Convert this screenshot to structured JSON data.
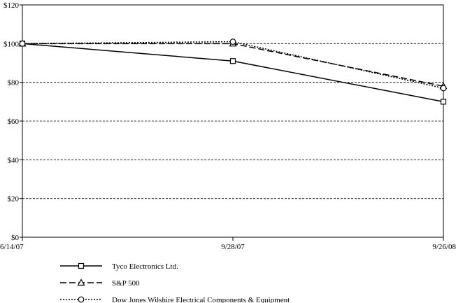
{
  "chart_data": {
    "type": "line",
    "title": "",
    "xlabel": "",
    "ylabel": "",
    "categories": [
      "6/14/07",
      "9/28/07",
      "9/26/08"
    ],
    "y_ticks": [
      "$0",
      "$20",
      "$40",
      "$60",
      "$80",
      "$100",
      "$120"
    ],
    "y_tick_values": [
      0,
      20,
      40,
      60,
      80,
      100,
      120
    ],
    "ylim": [
      0,
      120
    ],
    "grid": "horizontal dashed",
    "legend_position": "bottom-left",
    "series": [
      {
        "name": "Tyco Electronics Ltd.",
        "values": [
          100,
          91,
          70
        ],
        "marker": "square",
        "dash": "solid"
      },
      {
        "name": "S&P 500",
        "values": [
          100,
          100,
          78
        ],
        "marker": "triangle",
        "dash": "dashed"
      },
      {
        "name": "Dow Jones Wilshire Electrical Components & Equipment",
        "values": [
          100,
          101,
          77
        ],
        "marker": "circle",
        "dash": "dotted"
      }
    ]
  }
}
